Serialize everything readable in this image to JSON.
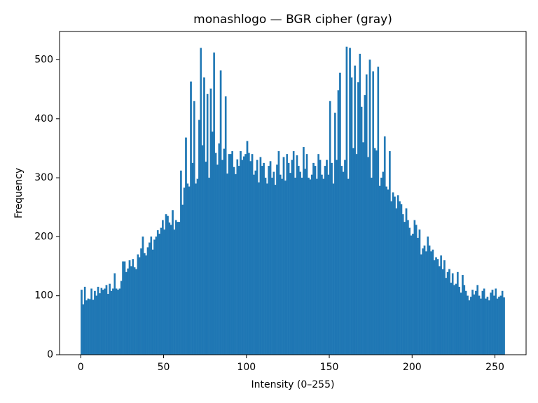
{
  "chart_data": {
    "type": "histogram",
    "title": "monashlogo — BGR cipher (gray)",
    "xlabel": "Intensity (0–255)",
    "ylabel": "Frequency",
    "color": "#1f77b4",
    "grid": false,
    "xlim": [
      -12.8,
      268.8
    ],
    "ylim": [
      0,
      548
    ],
    "xticks": [
      0,
      50,
      100,
      150,
      200,
      250
    ],
    "yticks": [
      0,
      100,
      200,
      300,
      400,
      500
    ],
    "bins": [
      0,
      1,
      2,
      3,
      4,
      5,
      6,
      7,
      8,
      9,
      10,
      11,
      12,
      13,
      14,
      15,
      16,
      17,
      18,
      19,
      20,
      21,
      22,
      23,
      24,
      25,
      26,
      27,
      28,
      29,
      30,
      31,
      32,
      33,
      34,
      35,
      36,
      37,
      38,
      39,
      40,
      41,
      42,
      43,
      44,
      45,
      46,
      47,
      48,
      49,
      50,
      51,
      52,
      53,
      54,
      55,
      56,
      57,
      58,
      59,
      60,
      61,
      62,
      63,
      64,
      65,
      66,
      67,
      68,
      69,
      70,
      71,
      72,
      73,
      74,
      75,
      76,
      77,
      78,
      79,
      80,
      81,
      82,
      83,
      84,
      85,
      86,
      87,
      88,
      89,
      90,
      91,
      92,
      93,
      94,
      95,
      96,
      97,
      98,
      99,
      100,
      101,
      102,
      103,
      104,
      105,
      106,
      107,
      108,
      109,
      110,
      111,
      112,
      113,
      114,
      115,
      116,
      117,
      118,
      119,
      120,
      121,
      122,
      123,
      124,
      125,
      126,
      127,
      128,
      129,
      130,
      131,
      132,
      133,
      134,
      135,
      136,
      137,
      138,
      139,
      140,
      141,
      142,
      143,
      144,
      145,
      146,
      147,
      148,
      149,
      150,
      151,
      152,
      153,
      154,
      155,
      156,
      157,
      158,
      159,
      160,
      161,
      162,
      163,
      164,
      165,
      166,
      167,
      168,
      169,
      170,
      171,
      172,
      173,
      174,
      175,
      176,
      177,
      178,
      179,
      180,
      181,
      182,
      183,
      184,
      185,
      186,
      187,
      188,
      189,
      190,
      191,
      192,
      193,
      194,
      195,
      196,
      197,
      198,
      199,
      200,
      201,
      202,
      203,
      204,
      205,
      206,
      207,
      208,
      209,
      210,
      211,
      212,
      213,
      214,
      215,
      216,
      217,
      218,
      219,
      220,
      221,
      222,
      223,
      224,
      225,
      226,
      227,
      228,
      229,
      230,
      231,
      232,
      233,
      234,
      235,
      236,
      237,
      238,
      239,
      240,
      241,
      242,
      243,
      244,
      245,
      246,
      247,
      248,
      249,
      250,
      251,
      252,
      253,
      254,
      255,
      256
    ],
    "values": [
      110,
      85,
      115,
      92,
      95,
      94,
      112,
      93,
      108,
      100,
      115,
      104,
      113,
      110,
      112,
      118,
      103,
      120,
      108,
      112,
      138,
      112,
      110,
      112,
      125,
      158,
      158,
      140,
      146,
      160,
      150,
      162,
      148,
      145,
      170,
      165,
      180,
      200,
      172,
      168,
      182,
      190,
      200,
      178,
      195,
      200,
      211,
      205,
      215,
      228,
      212,
      238,
      235,
      224,
      220,
      245,
      212,
      228,
      225,
      225,
      312,
      254,
      283,
      368,
      290,
      285,
      463,
      325,
      430,
      290,
      298,
      398,
      520,
      355,
      470,
      327,
      442,
      300,
      451,
      378,
      512,
      342,
      322,
      358,
      482,
      330,
      349,
      438,
      307,
      340,
      340,
      345,
      318,
      306,
      331,
      320,
      345,
      330,
      336,
      340,
      362,
      342,
      328,
      340,
      305,
      312,
      330,
      292,
      335,
      320,
      325,
      300,
      290,
      320,
      328,
      300,
      310,
      288,
      322,
      345,
      305,
      298,
      335,
      295,
      340,
      325,
      308,
      330,
      345,
      300,
      338,
      320,
      310,
      300,
      352,
      315,
      340,
      300,
      297,
      305,
      325,
      320,
      298,
      340,
      330,
      305,
      298,
      320,
      330,
      305,
      430,
      325,
      290,
      410,
      330,
      448,
      478,
      320,
      310,
      330,
      522,
      298,
      520,
      470,
      350,
      490,
      340,
      462,
      510,
      420,
      360,
      440,
      475,
      335,
      500,
      300,
      480,
      350,
      346,
      488,
      286,
      300,
      310,
      370,
      285,
      280,
      345,
      260,
      275,
      268,
      248,
      270,
      260,
      255,
      238,
      225,
      248,
      228,
      215,
      202,
      205,
      228,
      220,
      198,
      212,
      170,
      180,
      185,
      175,
      200,
      185,
      175,
      178,
      160,
      165,
      162,
      150,
      168,
      145,
      160,
      130,
      140,
      145,
      122,
      138,
      118,
      120,
      140,
      115,
      105,
      135,
      118,
      108,
      100,
      92,
      98,
      110,
      102,
      108,
      118,
      100,
      95,
      108,
      112,
      95,
      98,
      92,
      105,
      110,
      100,
      112,
      95,
      98,
      100,
      108,
      97
    ]
  }
}
